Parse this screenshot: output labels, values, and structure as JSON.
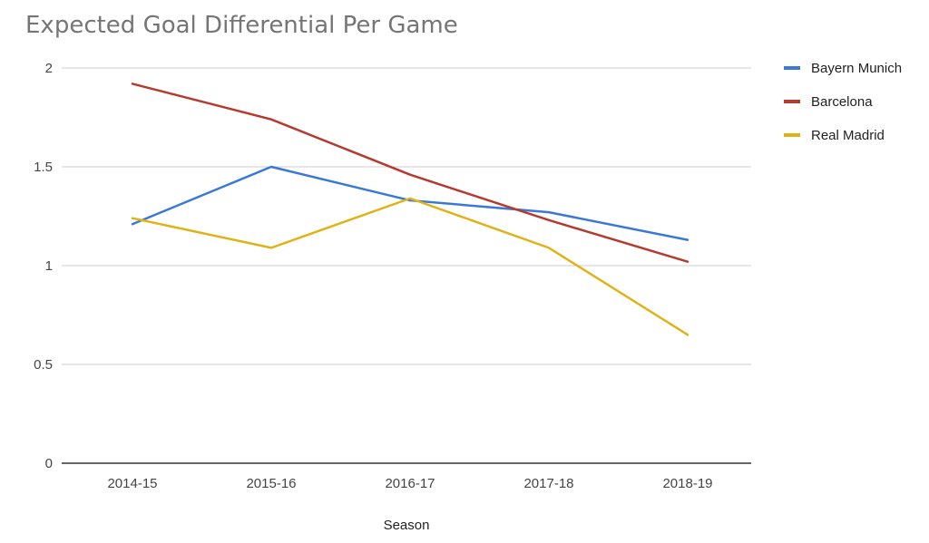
{
  "chart_data": {
    "type": "line",
    "title": "Expected Goal Differential Per Game",
    "xlabel": "Season",
    "ylabel": "",
    "categories": [
      "2014-15",
      "2015-16",
      "2016-17",
      "2017-18",
      "2018-19"
    ],
    "ylim": [
      0,
      2
    ],
    "yticks": [
      "0",
      "0.5",
      "1",
      "1.5",
      "2"
    ],
    "grid": true,
    "legend_position": "right",
    "series": [
      {
        "name": "Bayern Munich",
        "color": "#3a78d8",
        "values": [
          1.21,
          1.5,
          1.33,
          1.27,
          1.13
        ]
      },
      {
        "name": "Barcelona",
        "color": "#b53a2f",
        "values": [
          1.92,
          1.74,
          1.46,
          1.23,
          1.02
        ]
      },
      {
        "name": "Real Madrid",
        "color": "#e0b215",
        "values": [
          1.24,
          1.09,
          1.34,
          1.09,
          0.65
        ]
      }
    ]
  }
}
